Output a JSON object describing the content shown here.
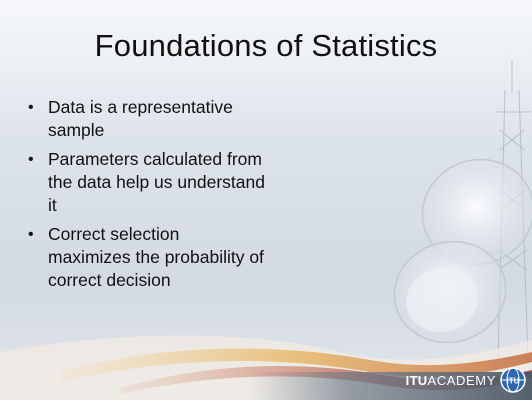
{
  "slide": {
    "title": "Foundations of Statistics",
    "bullets": [
      "Data is a representative sample",
      "Parameters calculated from the data help us understand it",
      "Correct selection maximizes the probability of correct decision"
    ],
    "bullet_symbol": "•"
  },
  "logo": {
    "brand": "ITU",
    "suffix": "ACADEMY",
    "emblem_text": "ITU"
  },
  "colors": {
    "background": "#dde3ea",
    "title_text": "#111111",
    "accent_swoosh": "#c8734a",
    "swoosh_gold": "#e7b86a"
  }
}
